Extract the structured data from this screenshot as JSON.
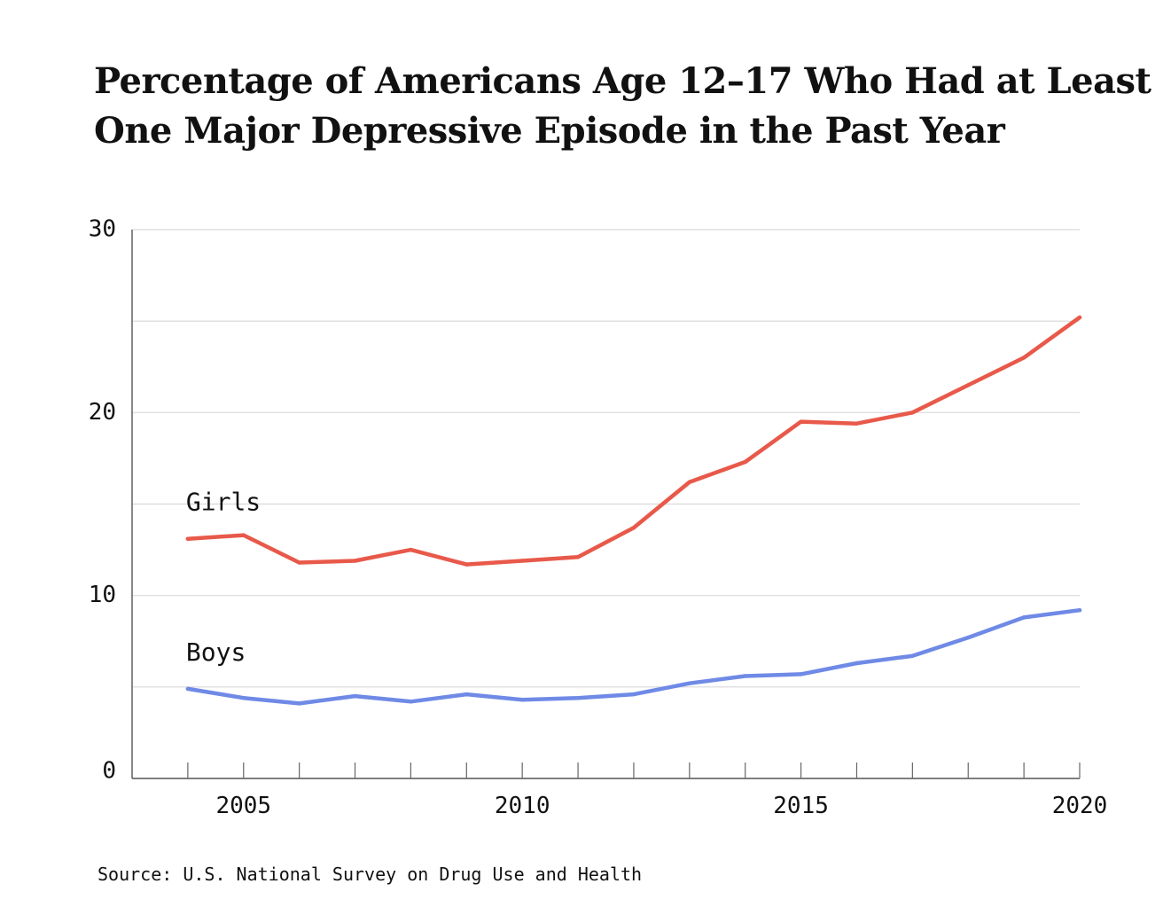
{
  "chart_data": {
    "type": "line",
    "title_lines": [
      "Percentage of Americans Age 12–17 Who Had at Least",
      "One Major Depressive Episode in the Past Year"
    ],
    "xlabel": "",
    "ylabel": "",
    "x": [
      2004,
      2005,
      2006,
      2007,
      2008,
      2009,
      2010,
      2011,
      2012,
      2013,
      2014,
      2015,
      2016,
      2017,
      2018,
      2019,
      2020
    ],
    "xlim": [
      2003,
      2020
    ],
    "ylim": [
      0,
      30
    ],
    "x_ticks": [
      2005,
      2010,
      2015,
      2020
    ],
    "y_ticks": [
      0,
      10,
      20,
      30
    ],
    "y_gridlines": [
      5,
      10,
      15,
      20,
      25,
      30
    ],
    "grid": true,
    "series": [
      {
        "name": "Girls",
        "color": "#e8594a",
        "values": [
          13.1,
          13.3,
          11.8,
          11.9,
          12.5,
          11.7,
          11.9,
          12.1,
          13.7,
          16.2,
          17.3,
          19.5,
          19.4,
          20.0,
          21.5,
          23.0,
          25.2
        ]
      },
      {
        "name": "Boys",
        "color": "#6f8ae6",
        "values": [
          4.9,
          4.4,
          4.1,
          4.5,
          4.2,
          4.6,
          4.3,
          4.4,
          4.6,
          5.2,
          5.6,
          5.7,
          6.3,
          6.7,
          7.7,
          8.8,
          9.2
        ]
      }
    ]
  },
  "source": "Source: U.S. National Survey on Drug Use and Health"
}
